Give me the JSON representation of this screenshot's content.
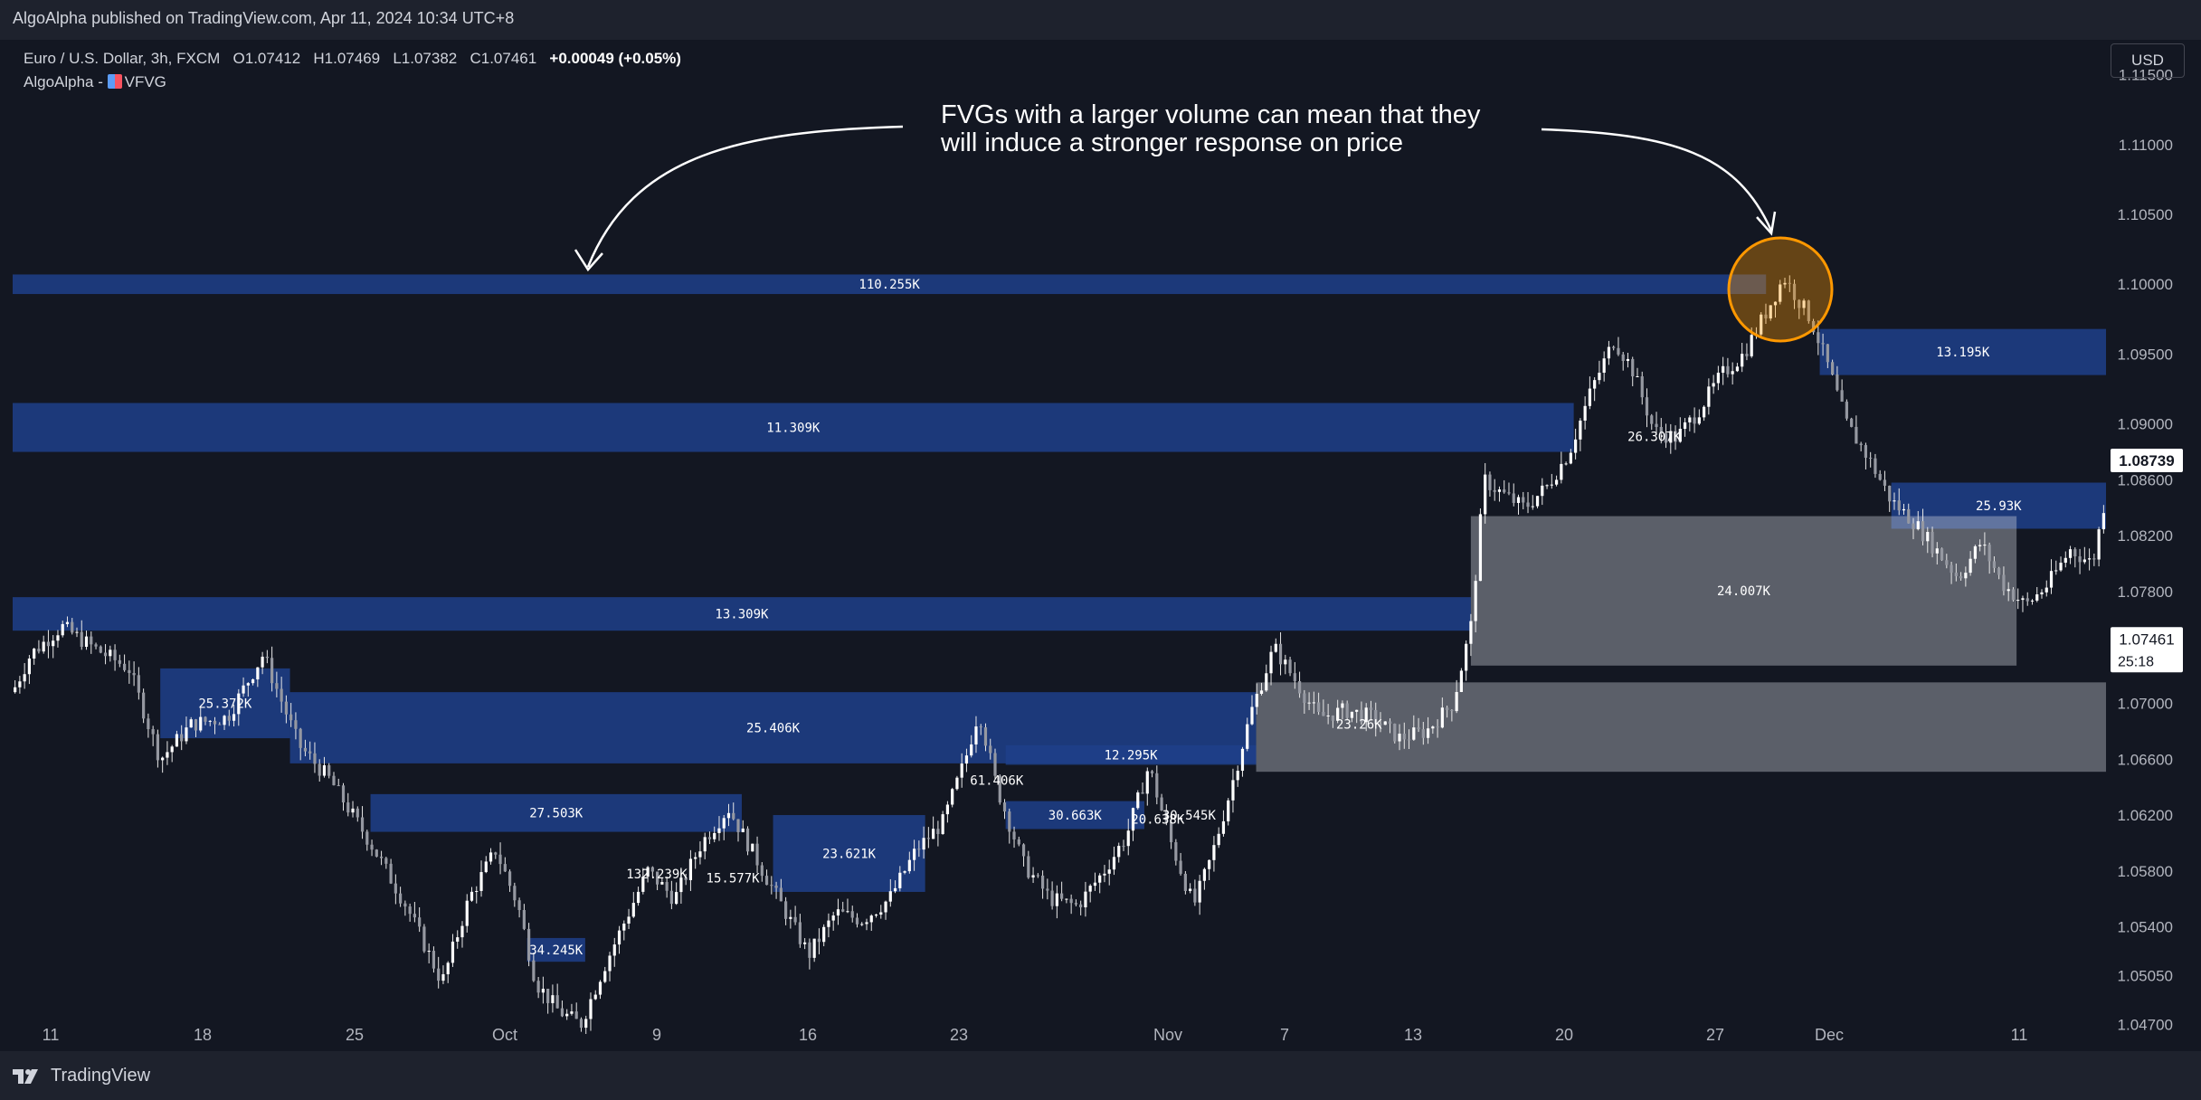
{
  "header": {
    "published": "AlgoAlpha published on TradingView.com, Apr 11, 2024 10:34 UTC+8"
  },
  "legend": {
    "symbol": "Euro / U.S. Dollar, 3h, FXCM",
    "open_label": "O",
    "open": "1.07412",
    "high_label": "H",
    "high": "1.07469",
    "low_label": "L",
    "low": "1.07382",
    "close_label": "C",
    "close": "1.07461",
    "change": "+0.00049 (+0.05%)",
    "indicator": "AlgoAlpha -",
    "indicator_name": "VFVG"
  },
  "currency_button": "USD",
  "annotation": {
    "line1": "FVGs with a larger volume can mean that they",
    "line2": "will induce a stronger response on price"
  },
  "footer": {
    "brand": "TradingView"
  },
  "colors": {
    "background": "#131722",
    "bullish_fvg": "#1e3f8a",
    "bearish_fvg": "#d1d4dc",
    "candle": "#ffffff",
    "highlight_circle": "#ff9800"
  },
  "chart_data": {
    "type": "candlestick",
    "symbol": "EURUSD",
    "timeframe": "3h",
    "y_axis": {
      "range": [
        1.0451,
        1.1175
      ],
      "ticks": [
        "1.11500",
        "1.11000",
        "1.10500",
        "1.10000",
        "1.09500",
        "1.09000",
        "1.08600",
        "1.08200",
        "1.07800",
        "1.07400",
        "1.07000",
        "1.06600",
        "1.06200",
        "1.05800",
        "1.05400",
        "1.05050",
        "1.04700"
      ],
      "current_price": "1.08739",
      "last_price": "1.07461",
      "countdown": "25:18"
    },
    "x_axis": {
      "labels": [
        "11",
        "18",
        "25",
        "Oct",
        "9",
        "16",
        "23",
        "Nov",
        "7",
        "13",
        "20",
        "27",
        "Dec",
        "11"
      ]
    },
    "price_path": [
      [
        0,
        1.0708
      ],
      [
        0.4,
        1.0735
      ],
      [
        1.1,
        1.0755
      ],
      [
        1.8,
        1.074
      ],
      [
        2.6,
        1.0725
      ],
      [
        3.3,
        1.066
      ],
      [
        4.0,
        1.0685
      ],
      [
        4.8,
        1.069
      ],
      [
        5.6,
        1.0735
      ],
      [
        6.4,
        1.067
      ],
      [
        7.1,
        1.0645
      ],
      [
        8.0,
        1.06
      ],
      [
        8.8,
        1.0555
      ],
      [
        9.6,
        1.05
      ],
      [
        10.2,
        1.056
      ],
      [
        10.8,
        1.0595
      ],
      [
        11.3,
        1.0555
      ],
      [
        11.7,
        1.05
      ],
      [
        12.2,
        1.048
      ],
      [
        12.7,
        1.047
      ],
      [
        13.2,
        1.051
      ],
      [
        13.7,
        1.0545
      ],
      [
        14.2,
        1.058
      ],
      [
        14.8,
        1.056
      ],
      [
        15.4,
        1.06
      ],
      [
        16.0,
        1.0625
      ],
      [
        16.6,
        1.059
      ],
      [
        17.2,
        1.0555
      ],
      [
        17.8,
        1.052
      ],
      [
        18.4,
        1.055
      ],
      [
        19.0,
        1.0545
      ],
      [
        19.6,
        1.056
      ],
      [
        20.2,
        1.0595
      ],
      [
        20.8,
        1.0615
      ],
      [
        21.3,
        1.066
      ],
      [
        21.6,
        1.0695
      ],
      [
        22.0,
        1.064
      ],
      [
        22.6,
        1.0585
      ],
      [
        23.2,
        1.056
      ],
      [
        23.8,
        1.0555
      ],
      [
        24.4,
        1.058
      ],
      [
        24.9,
        1.0605
      ],
      [
        25.4,
        1.0655
      ],
      [
        25.9,
        1.06
      ],
      [
        26.4,
        1.0555
      ],
      [
        26.8,
        1.059
      ],
      [
        27.2,
        1.0635
      ],
      [
        27.7,
        1.0695
      ],
      [
        28.2,
        1.074
      ],
      [
        28.7,
        1.0715
      ],
      [
        29.2,
        1.069
      ],
      [
        29.8,
        1.0695
      ],
      [
        30.4,
        1.069
      ],
      [
        31.0,
        1.0675
      ],
      [
        31.6,
        1.068
      ],
      [
        32.2,
        1.07
      ],
      [
        32.6,
        1.0755
      ],
      [
        32.9,
        1.086
      ],
      [
        33.3,
        1.085
      ],
      [
        33.8,
        1.084
      ],
      [
        34.3,
        1.0855
      ],
      [
        34.8,
        1.088
      ],
      [
        35.3,
        1.0925
      ],
      [
        35.8,
        1.096
      ],
      [
        36.2,
        1.094
      ],
      [
        36.7,
        1.0895
      ],
      [
        37.2,
        1.089
      ],
      [
        37.7,
        1.091
      ],
      [
        38.2,
        1.0935
      ],
      [
        38.7,
        1.095
      ],
      [
        39.2,
        1.098
      ],
      [
        39.6,
        1.1005
      ],
      [
        39.9,
        1.099
      ],
      [
        40.2,
        1.0975
      ],
      [
        40.6,
        1.094
      ],
      [
        41.0,
        1.09
      ],
      [
        41.5,
        1.0875
      ],
      [
        42.0,
        1.0845
      ],
      [
        42.5,
        1.083
      ],
      [
        43.0,
        1.081
      ],
      [
        43.5,
        1.079
      ],
      [
        44.0,
        1.0815
      ],
      [
        44.5,
        1.0785
      ],
      [
        45.0,
        1.077
      ],
      [
        45.5,
        1.0785
      ],
      [
        46.0,
        1.081
      ],
      [
        46.5,
        1.08
      ],
      [
        46.8,
        1.085
      ]
    ],
    "x_span": [
      0,
      46.8
    ],
    "fvg_zones": [
      {
        "label": "110.255K",
        "type": "bullish",
        "x0": 0,
        "x1": 39.2,
        "y0": 1.0993,
        "y1": 1.1007
      },
      {
        "label": "11.309K",
        "type": "bullish",
        "x0": 0,
        "x1": 34.9,
        "y0": 1.088,
        "y1": 1.0915
      },
      {
        "label": "13.309K",
        "type": "bullish",
        "x0": 0,
        "x1": 32.6,
        "y0": 1.0752,
        "y1": 1.0776
      },
      {
        "label": "25.372K",
        "type": "bullish",
        "x0": 3.3,
        "x1": 6.2,
        "y0": 1.0675,
        "y1": 1.0725
      },
      {
        "label": "25.406K",
        "type": "bullish",
        "x0": 6.2,
        "x1": 27.8,
        "y0": 1.0657,
        "y1": 1.0708
      },
      {
        "label": "27.503K",
        "type": "bullish",
        "x0": 8.0,
        "x1": 16.3,
        "y0": 1.0608,
        "y1": 1.0635
      },
      {
        "label": "34.245K",
        "type": "bullish",
        "x0": 11.5,
        "x1": 12.8,
        "y0": 1.0515,
        "y1": 1.0532
      },
      {
        "label": "23.621K",
        "type": "bullish",
        "x0": 17.0,
        "x1": 20.4,
        "y0": 1.0565,
        "y1": 1.062
      },
      {
        "label": "12.295K",
        "type": "bullish",
        "x0": 22.2,
        "x1": 27.8,
        "y0": 1.0656,
        "y1": 1.067
      },
      {
        "label": "30.663K",
        "type": "bullish",
        "x0": 22.2,
        "x1": 25.3,
        "y0": 1.061,
        "y1": 1.063
      },
      {
        "label": "13.195K",
        "type": "bullish",
        "x0": 40.4,
        "x1": 46.8,
        "y0": 1.0935,
        "y1": 1.0968
      },
      {
        "label": "25.93K",
        "type": "bullish",
        "x0": 42.0,
        "x1": 46.8,
        "y0": 1.0825,
        "y1": 1.0858
      },
      {
        "label": "24.007K",
        "type": "bearish",
        "x0": 32.6,
        "x1": 44.8,
        "y0": 1.0727,
        "y1": 1.0834
      },
      {
        "label": "",
        "type": "bearish",
        "x0": 27.8,
        "x1": 46.8,
        "y0": 1.0651,
        "y1": 1.0715
      }
    ],
    "inner_labels": [
      {
        "label": "61.406K",
        "x": 22.0,
        "y": 1.0645
      },
      {
        "label": "132.239K",
        "x": 14.4,
        "y": 1.0578
      },
      {
        "label": "15.577K",
        "x": 16.1,
        "y": 1.0575
      },
      {
        "label": "20.638K",
        "x": 25.6,
        "y": 1.0617
      },
      {
        "label": "30.545K",
        "x": 26.3,
        "y": 1.062
      },
      {
        "label": "23.26K",
        "x": 30.1,
        "y": 1.0685
      },
      {
        "label": "26.307K",
        "x": 36.7,
        "y": 1.0891
      }
    ]
  }
}
